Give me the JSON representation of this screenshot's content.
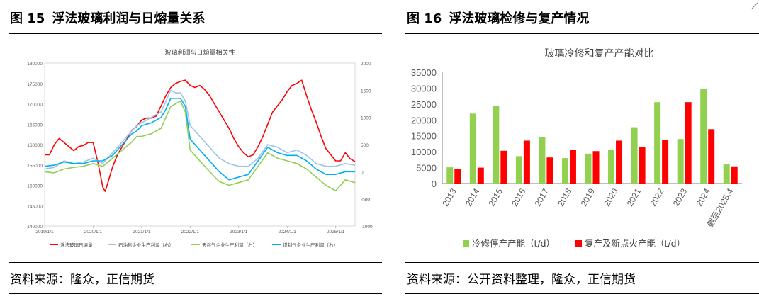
{
  "left": {
    "fig_num": "图 15",
    "fig_title": "浮法玻璃利润与日熔量关系",
    "source": "资料来源：隆众，正信期货",
    "chart_data": {
      "type": "line",
      "title": "玻璃利润与日熔量相关性",
      "y_left": {
        "ticks": [
          "180000",
          "175000",
          "170000",
          "165000",
          "160000",
          "155000",
          "150000",
          "145000",
          "140000"
        ],
        "range": [
          140000,
          180000
        ]
      },
      "y_right": {
        "ticks": [
          "2000",
          "1500",
          "1000",
          "500",
          "0",
          "-500",
          "-1000"
        ],
        "range": [
          -1000,
          2000
        ]
      },
      "x_ticks": [
        "2019/1/1",
        "2020/1/1",
        "2021/1/1",
        "2022/1/1",
        "2023/1/1",
        "2024/1/1",
        "2025/1/1"
      ],
      "x_range": [
        2019.0,
        2025.4
      ],
      "legend": [
        "浮法玻璃日熔量",
        "石油焦企业生产利润（右）",
        "天然气企业生产利润（右）",
        "煤制气企业生产利润（右）"
      ],
      "colors": [
        "#ff0000",
        "#9dc3e6",
        "#92d050",
        "#00b0f0"
      ],
      "series": [
        {
          "name": "浮法玻璃日熔量",
          "axis": "left",
          "points": [
            [
              2019.0,
              157500
            ],
            [
              2019.1,
              157500
            ],
            [
              2019.2,
              160000
            ],
            [
              2019.3,
              161500
            ],
            [
              2019.4,
              160500
            ],
            [
              2019.5,
              159500
            ],
            [
              2019.6,
              158500
            ],
            [
              2019.7,
              159500
            ],
            [
              2019.8,
              159800
            ],
            [
              2019.9,
              160500
            ],
            [
              2020.0,
              160500
            ],
            [
              2020.1,
              155500
            ],
            [
              2020.15,
              152500
            ],
            [
              2020.2,
              149500
            ],
            [
              2020.25,
              148500
            ],
            [
              2020.3,
              150500
            ],
            [
              2020.4,
              154500
            ],
            [
              2020.5,
              157500
            ],
            [
              2020.6,
              159500
            ],
            [
              2020.7,
              161500
            ],
            [
              2020.8,
              163500
            ],
            [
              2020.9,
              164500
            ],
            [
              2021.0,
              166000
            ],
            [
              2021.1,
              166500
            ],
            [
              2021.2,
              166500
            ],
            [
              2021.3,
              167000
            ],
            [
              2021.4,
              169500
            ],
            [
              2021.5,
              172000
            ],
            [
              2021.6,
              174000
            ],
            [
              2021.7,
              175000
            ],
            [
              2021.8,
              175500
            ],
            [
              2021.9,
              175800
            ],
            [
              2022.0,
              174500
            ],
            [
              2022.1,
              174000
            ],
            [
              2022.2,
              174500
            ],
            [
              2022.3,
              173500
            ],
            [
              2022.4,
              172000
            ],
            [
              2022.5,
              170000
            ],
            [
              2022.6,
              168000
            ],
            [
              2022.7,
              166000
            ],
            [
              2022.8,
              164000
            ],
            [
              2022.9,
              161500
            ],
            [
              2023.0,
              159500
            ],
            [
              2023.1,
              158000
            ],
            [
              2023.2,
              157000
            ],
            [
              2023.3,
              157500
            ],
            [
              2023.4,
              159500
            ],
            [
              2023.5,
              162000
            ],
            [
              2023.6,
              165000
            ],
            [
              2023.7,
              168000
            ],
            [
              2023.8,
              169500
            ],
            [
              2023.9,
              171000
            ],
            [
              2024.0,
              173000
            ],
            [
              2024.1,
              174500
            ],
            [
              2024.2,
              175000
            ],
            [
              2024.3,
              175800
            ],
            [
              2024.4,
              172000
            ],
            [
              2024.5,
              168500
            ],
            [
              2024.6,
              165500
            ],
            [
              2024.7,
              162000
            ],
            [
              2024.8,
              159000
            ],
            [
              2024.9,
              157500
            ],
            [
              2025.0,
              156000
            ],
            [
              2025.1,
              156000
            ],
            [
              2025.2,
              158000
            ],
            [
              2025.3,
              156500
            ],
            [
              2025.4,
              155800
            ]
          ]
        },
        {
          "name": "石油焦企业生产利润（右）",
          "axis": "right",
          "points": [
            [
              2019.0,
              50
            ],
            [
              2019.2,
              80
            ],
            [
              2019.4,
              200
            ],
            [
              2019.6,
              150
            ],
            [
              2019.8,
              180
            ],
            [
              2020.0,
              250
            ],
            [
              2020.2,
              150
            ],
            [
              2020.4,
              350
            ],
            [
              2020.6,
              550
            ],
            [
              2020.8,
              750
            ],
            [
              2020.9,
              850
            ],
            [
              2021.0,
              900
            ],
            [
              2021.2,
              1000
            ],
            [
              2021.4,
              1100
            ],
            [
              2021.5,
              1300
            ],
            [
              2021.6,
              1500
            ],
            [
              2021.7,
              1450
            ],
            [
              2021.8,
              1450
            ],
            [
              2021.9,
              1300
            ],
            [
              2022.0,
              850
            ],
            [
              2022.2,
              650
            ],
            [
              2022.4,
              450
            ],
            [
              2022.6,
              250
            ],
            [
              2022.8,
              150
            ],
            [
              2023.0,
              100
            ],
            [
              2023.2,
              100
            ],
            [
              2023.4,
              250
            ],
            [
              2023.6,
              500
            ],
            [
              2023.8,
              450
            ],
            [
              2024.0,
              350
            ],
            [
              2024.2,
              400
            ],
            [
              2024.4,
              300
            ],
            [
              2024.6,
              150
            ],
            [
              2024.8,
              100
            ],
            [
              2025.0,
              100
            ],
            [
              2025.2,
              150
            ],
            [
              2025.4,
              120
            ]
          ]
        },
        {
          "name": "天然气企业生产利润（右）",
          "axis": "right",
          "points": [
            [
              2019.0,
              0
            ],
            [
              2019.2,
              -20
            ],
            [
              2019.4,
              50
            ],
            [
              2019.6,
              80
            ],
            [
              2019.8,
              100
            ],
            [
              2020.0,
              150
            ],
            [
              2020.2,
              100
            ],
            [
              2020.4,
              250
            ],
            [
              2020.6,
              400
            ],
            [
              2020.8,
              550
            ],
            [
              2020.9,
              650
            ],
            [
              2021.0,
              650
            ],
            [
              2021.2,
              700
            ],
            [
              2021.4,
              800
            ],
            [
              2021.5,
              1000
            ],
            [
              2021.6,
              1200
            ],
            [
              2021.7,
              1250
            ],
            [
              2021.8,
              1300
            ],
            [
              2021.9,
              1100
            ],
            [
              2022.0,
              400
            ],
            [
              2022.2,
              200
            ],
            [
              2022.4,
              0
            ],
            [
              2022.6,
              -180
            ],
            [
              2022.8,
              -250
            ],
            [
              2023.0,
              -200
            ],
            [
              2023.2,
              -150
            ],
            [
              2023.4,
              100
            ],
            [
              2023.6,
              350
            ],
            [
              2023.8,
              250
            ],
            [
              2024.0,
              200
            ],
            [
              2024.2,
              150
            ],
            [
              2024.4,
              50
            ],
            [
              2024.6,
              -100
            ],
            [
              2024.8,
              -250
            ],
            [
              2025.0,
              -350
            ],
            [
              2025.1,
              -250
            ],
            [
              2025.2,
              -150
            ],
            [
              2025.4,
              -200
            ]
          ]
        },
        {
          "name": "煤制气企业生产利润（右）",
          "axis": "right",
          "points": [
            [
              2019.0,
              100
            ],
            [
              2019.2,
              120
            ],
            [
              2019.4,
              180
            ],
            [
              2019.6,
              150
            ],
            [
              2019.8,
              150
            ],
            [
              2020.0,
              200
            ],
            [
              2020.2,
              200
            ],
            [
              2020.4,
              300
            ],
            [
              2020.6,
              500
            ],
            [
              2020.8,
              700
            ],
            [
              2020.9,
              750
            ],
            [
              2021.0,
              850
            ],
            [
              2021.2,
              900
            ],
            [
              2021.4,
              1000
            ],
            [
              2021.5,
              1150
            ],
            [
              2021.6,
              1350
            ],
            [
              2021.7,
              1350
            ],
            [
              2021.8,
              1350
            ],
            [
              2021.9,
              1200
            ],
            [
              2022.0,
              600
            ],
            [
              2022.2,
              400
            ],
            [
              2022.4,
              200
            ],
            [
              2022.6,
              0
            ],
            [
              2022.8,
              -150
            ],
            [
              2023.0,
              -100
            ],
            [
              2023.2,
              -50
            ],
            [
              2023.4,
              200
            ],
            [
              2023.6,
              450
            ],
            [
              2023.8,
              350
            ],
            [
              2024.0,
              300
            ],
            [
              2024.2,
              300
            ],
            [
              2024.4,
              200
            ],
            [
              2024.6,
              50
            ],
            [
              2024.8,
              -50
            ],
            [
              2025.0,
              -50
            ],
            [
              2025.2,
              0
            ],
            [
              2025.4,
              0
            ]
          ]
        }
      ]
    }
  },
  "right": {
    "fig_num": "图 16",
    "fig_title": "浮法玻璃检修与复产情况",
    "source": "资料来源：公开资料整理，隆众，正信期货",
    "chart_data": {
      "type": "bar",
      "title": "玻璃冷修和复产产能对比",
      "categories": [
        "2013",
        "2014",
        "2015",
        "2016",
        "2017",
        "2018",
        "2019",
        "2020",
        "2021",
        "2022",
        "2023",
        "2024",
        "截至2025.4"
      ],
      "series": [
        {
          "name": "冷修停产产能（t/d）",
          "values": [
            5100,
            22000,
            24400,
            8600,
            14700,
            8000,
            9400,
            10600,
            17700,
            25600,
            14000,
            29700,
            6000
          ]
        },
        {
          "name": "复产及新点火产能（t/d）",
          "values": [
            4500,
            5000,
            10300,
            13500,
            8200,
            10600,
            10200,
            13500,
            11500,
            13600,
            25600,
            17100,
            5400
          ]
        }
      ],
      "colors": [
        "#92d050",
        "#ff0000"
      ],
      "y_ticks": [
        "0",
        "5000",
        "10000",
        "15000",
        "20000",
        "25000",
        "30000",
        "35000"
      ],
      "ylim": [
        0,
        35000
      ]
    }
  }
}
